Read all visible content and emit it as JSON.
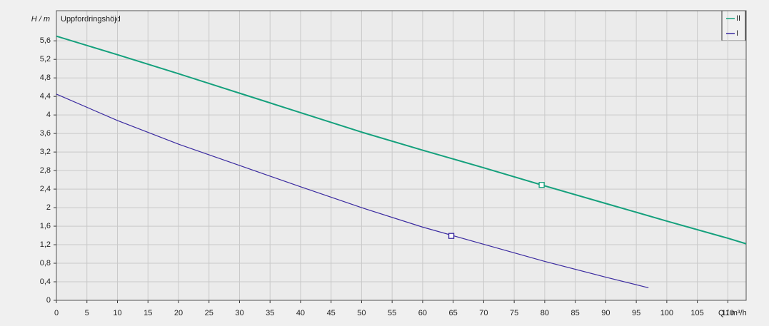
{
  "chart_data": {
    "type": "line",
    "title": "Uppfordringshöjd",
    "y_label": "H / m",
    "x_label": "Q / m³/h",
    "xlim": [
      0,
      113
    ],
    "ylim": [
      0,
      6.25
    ],
    "xticks": [
      0,
      5,
      10,
      15,
      20,
      25,
      30,
      35,
      40,
      45,
      50,
      55,
      60,
      65,
      70,
      75,
      80,
      85,
      90,
      95,
      100,
      105,
      110
    ],
    "yticks": [
      0,
      {
        "value": 0.4,
        "label": "0,4"
      },
      {
        "value": 0.8,
        "label": "0,8"
      },
      {
        "value": 1.2,
        "label": "1,2"
      },
      {
        "value": 1.6,
        "label": "1,6"
      },
      2,
      {
        "value": 2.4,
        "label": "2,4"
      },
      {
        "value": 2.8,
        "label": "2,8"
      },
      {
        "value": 3.2,
        "label": "3,2"
      },
      {
        "value": 3.6,
        "label": "3,6"
      },
      4,
      {
        "value": 4.4,
        "label": "4,4"
      },
      {
        "value": 4.8,
        "label": "4,8"
      },
      {
        "value": 5.2,
        "label": "5,2"
      },
      {
        "value": 5.6,
        "label": "5,6"
      }
    ],
    "grid": true,
    "legend": "top-right",
    "series": [
      {
        "name": "II",
        "color": "#14a07c",
        "x": [
          0,
          10,
          20,
          30,
          40,
          50,
          60,
          70,
          80,
          90,
          100,
          110,
          113
        ],
        "values": [
          5.7,
          5.3,
          4.89,
          4.47,
          4.05,
          3.63,
          3.24,
          2.86,
          2.47,
          2.09,
          1.71,
          1.34,
          1.22
        ],
        "marker": {
          "x": 79.5,
          "y": 2.49
        }
      },
      {
        "name": "I",
        "color": "#3a2aa0",
        "x": [
          0,
          10,
          20,
          30,
          40,
          50,
          60,
          70,
          80,
          90,
          97
        ],
        "values": [
          4.45,
          3.88,
          3.37,
          2.91,
          2.45,
          2.0,
          1.58,
          1.21,
          0.84,
          0.5,
          0.27
        ],
        "marker": {
          "x": 64.7,
          "y": 1.39
        }
      }
    ]
  }
}
